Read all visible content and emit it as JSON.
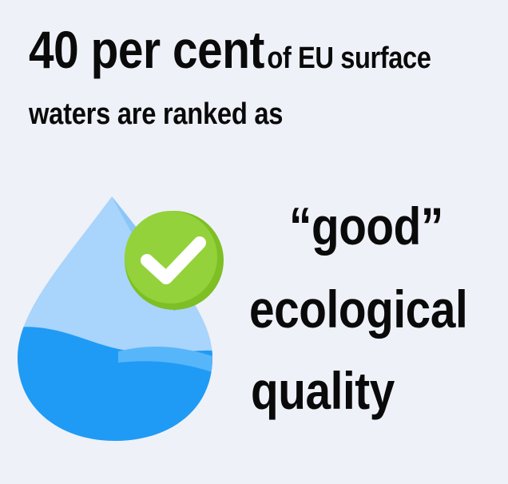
{
  "headline": {
    "big": "40 per cent",
    "small": "of EU surface",
    "line2": "waters are ranked as"
  },
  "quality": {
    "line1": "“good”",
    "line2": "ecological",
    "line3": "quality"
  },
  "icon": {
    "name": "water-drop-check-icon",
    "colors": {
      "drop_light": "#a9d4fb",
      "drop_water": "#1f9bf5",
      "check_circle": "#8fcf2f",
      "check_mark": "#ffffff"
    }
  }
}
